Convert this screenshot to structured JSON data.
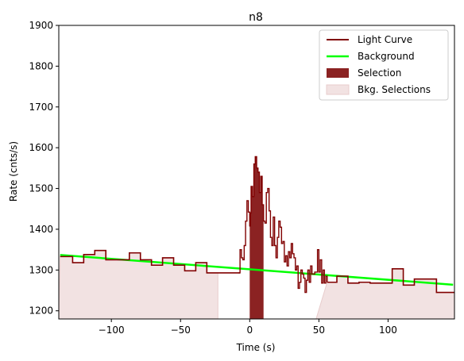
{
  "chart_data": {
    "type": "line",
    "title": "n8",
    "xlabel": "Time (s)",
    "ylabel": "Rate (cnts/s)",
    "xlim": [
      -138,
      148
    ],
    "ylim": [
      1180,
      1900
    ],
    "xticks": [
      -100,
      -50,
      0,
      50,
      100
    ],
    "yticks": [
      1200,
      1300,
      1400,
      1500,
      1600,
      1700,
      1800,
      1900
    ],
    "legend_position": "top-right",
    "grid": false,
    "colors": {
      "light_curve": "#800000",
      "background": "#00ff00",
      "selection": "#8b2222",
      "bkg_selection": "#f2e2e2",
      "bkg_selection_edge": "#e8cccc"
    },
    "legend": [
      {
        "label": "Light Curve",
        "kind": "line",
        "color": "#800000"
      },
      {
        "label": "Background",
        "kind": "line",
        "color": "#00ff00"
      },
      {
        "label": "Selection",
        "kind": "patch",
        "color": "#8b2222"
      },
      {
        "label": "Bkg. Selections",
        "kind": "patch",
        "color": "#f2e2e2"
      }
    ],
    "light_curve_coarse": [
      [
        -137,
        1333
      ],
      [
        -128,
        1318
      ],
      [
        -120,
        1338
      ],
      [
        -112,
        1348
      ],
      [
        -104,
        1325
      ],
      [
        -95,
        1325
      ],
      [
        -87,
        1342
      ],
      [
        -79,
        1325
      ],
      [
        -71,
        1312
      ],
      [
        -63,
        1330
      ],
      [
        -55,
        1312
      ],
      [
        -47,
        1298
      ],
      [
        -39,
        1318
      ],
      [
        -31,
        1293
      ],
      [
        -23,
        1293
      ],
      [
        -15,
        1293
      ],
      [
        -7,
        1293
      ]
    ],
    "light_curve_fine": [
      [
        -8,
        1293
      ],
      [
        -7,
        1350
      ],
      [
        -6,
        1330
      ],
      [
        -5,
        1325
      ],
      [
        -4,
        1360
      ],
      [
        -3,
        1420
      ],
      [
        -2,
        1470
      ],
      [
        -1,
        1442
      ],
      [
        0,
        1408
      ],
      [
        0.5,
        1440
      ],
      [
        1,
        1505
      ],
      [
        2,
        1480
      ],
      [
        3,
        1560
      ],
      [
        4,
        1578
      ],
      [
        5,
        1550
      ],
      [
        6,
        1540
      ],
      [
        7,
        1490
      ],
      [
        8,
        1530
      ],
      [
        9,
        1460
      ],
      [
        10,
        1420
      ],
      [
        11,
        1415
      ],
      [
        12,
        1490
      ],
      [
        13,
        1500
      ],
      [
        14,
        1445
      ],
      [
        15,
        1380
      ],
      [
        16,
        1360
      ],
      [
        17,
        1430
      ],
      [
        18,
        1360
      ],
      [
        19,
        1330
      ],
      [
        20,
        1380
      ],
      [
        21,
        1420
      ],
      [
        22,
        1405
      ],
      [
        23,
        1365
      ],
      [
        24,
        1370
      ],
      [
        25,
        1320
      ],
      [
        26,
        1335
      ],
      [
        27,
        1310
      ],
      [
        28,
        1345
      ],
      [
        29,
        1330
      ],
      [
        30,
        1365
      ],
      [
        31,
        1340
      ],
      [
        32,
        1330
      ],
      [
        33,
        1300
      ],
      [
        34,
        1310
      ],
      [
        35,
        1255
      ],
      [
        36,
        1270
      ],
      [
        37,
        1300
      ],
      [
        38,
        1290
      ],
      [
        39,
        1280
      ],
      [
        40,
        1245
      ],
      [
        41,
        1275
      ],
      [
        42,
        1300
      ],
      [
        43,
        1270
      ],
      [
        44,
        1310
      ],
      [
        45,
        1290
      ],
      [
        46,
        1290
      ],
      [
        47,
        1295
      ],
      [
        48,
        1295
      ],
      [
        49,
        1350
      ],
      [
        50,
        1295
      ],
      [
        51,
        1325
      ],
      [
        52,
        1268
      ],
      [
        53,
        1300
      ],
      [
        54,
        1268
      ],
      [
        55,
        1285
      ],
      [
        56,
        1270
      ]
    ],
    "light_curve_coarse_post": [
      [
        56,
        1270
      ],
      [
        63,
        1285
      ],
      [
        71,
        1268
      ],
      [
        79,
        1270
      ],
      [
        87,
        1268
      ],
      [
        95,
        1268
      ],
      [
        103,
        1303
      ],
      [
        111,
        1263
      ],
      [
        119,
        1278
      ],
      [
        127,
        1278
      ],
      [
        135,
        1245
      ],
      [
        148,
        1245
      ]
    ],
    "background_line": {
      "x": [
        -137,
        147
      ],
      "y": [
        1337,
        1264
      ]
    },
    "selection": {
      "x_start": 0,
      "x_end": 10
    },
    "bkg_selections": [
      {
        "x_start": -138,
        "x_end": -23
      },
      {
        "x_start": 48,
        "x_end": 148
      }
    ]
  }
}
